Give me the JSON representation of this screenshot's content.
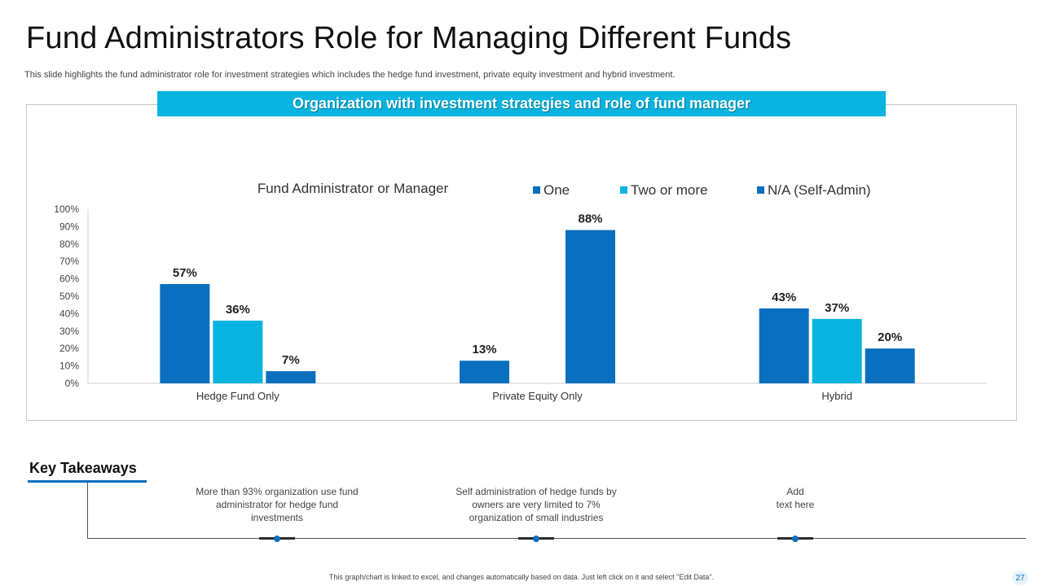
{
  "slide": {
    "title": "Fund Administrators Role for Managing Different Funds",
    "subtitle": "This slide highlights the fund administrator role for investment strategies which includes the hedge fund investment, private equity investment and hybrid investment.",
    "banner": "Organization with investment strategies and role of fund manager",
    "footer_note": "This graph/chart is linked to excel, and changes automatically based on data. Just left click on it and select \"Edit Data\".",
    "page_number": "27"
  },
  "chart_data": {
    "type": "bar",
    "title": "Fund Administrator or Manager",
    "categories": [
      "Hedge Fund Only",
      "Private Equity Only",
      "Hybrid"
    ],
    "series": [
      {
        "name": "One",
        "color": "#0b6fbf",
        "values": [
          57,
          13,
          43
        ],
        "labels": [
          "57%",
          "13%",
          "43%"
        ]
      },
      {
        "name": "Two or more",
        "color": "#0ab4e0",
        "values": [
          36,
          0,
          37
        ],
        "labels": [
          "36%",
          "",
          "37%"
        ]
      },
      {
        "name": "N/A (Self-Admin)",
        "color": "#0b6fbf",
        "values": [
          7,
          88,
          20
        ],
        "labels": [
          "7%",
          "88%",
          "20%"
        ]
      }
    ],
    "ylim": [
      0,
      100
    ],
    "yticks": [
      "0%",
      "10%",
      "20%",
      "30%",
      "40%",
      "50%",
      "60%",
      "70%",
      "80%",
      "90%",
      "100%"
    ],
    "legend_position": "top-right",
    "grid": false
  },
  "key_takeaways": {
    "title": "Key Takeaways",
    "items": [
      {
        "text": "More than 93% organization use fund administrator for hedge fund investments"
      },
      {
        "text": "Self administration of hedge funds by owners are very limited to 7% organization of small industries"
      },
      {
        "text": "Add\ntext here"
      }
    ]
  },
  "colors": {
    "accent": "#0ab4e0",
    "primary": "#0b6fbf"
  }
}
